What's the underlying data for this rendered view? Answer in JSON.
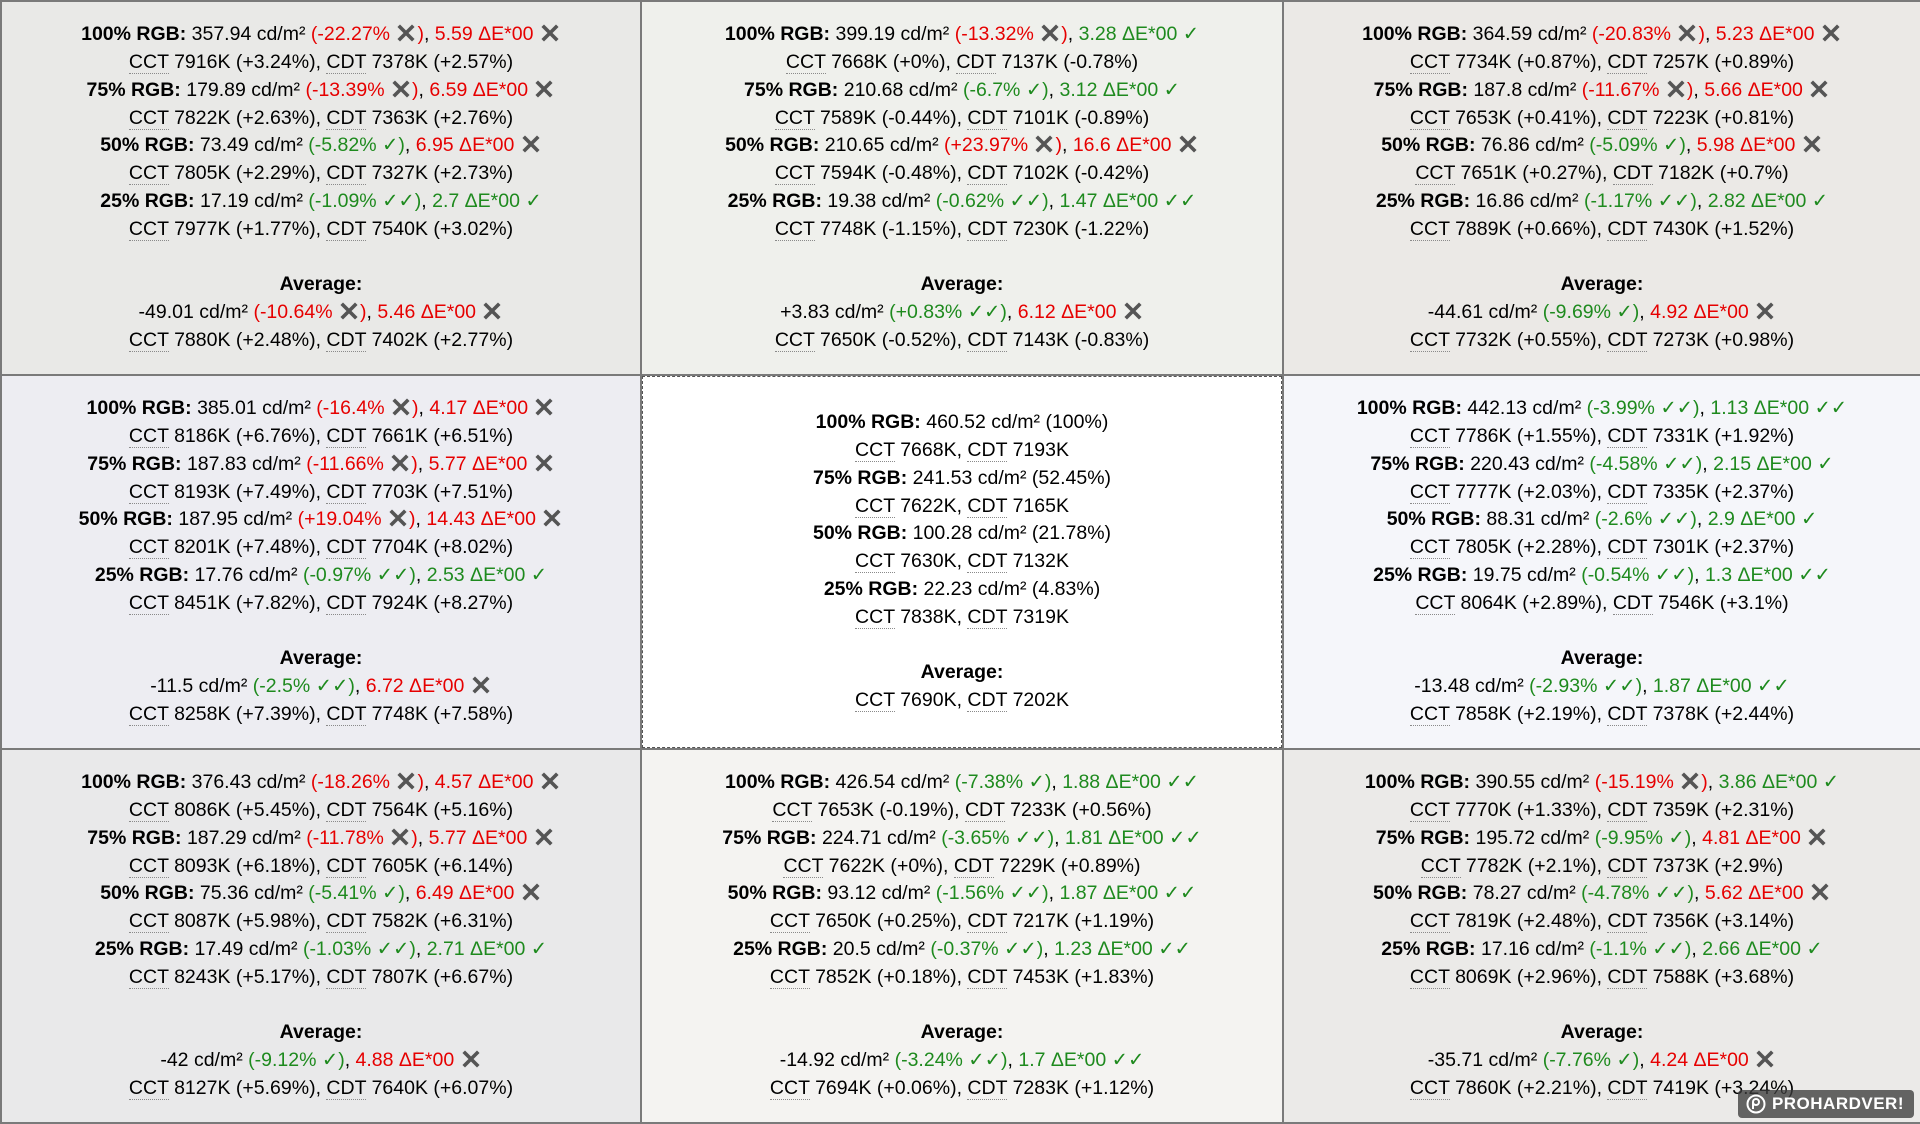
{
  "labels": {
    "average": "Average:",
    "cct": "CCT",
    "cdt": "CDT",
    "cross_glyph": "✖",
    "check_glyph": "✓"
  },
  "colors": {
    "bad": "#e60000",
    "good": "#1e8a1e",
    "text": "#000000",
    "separator": "#7a7a7a"
  },
  "watermark": {
    "text": "PROHARDVER!"
  },
  "cells": [
    {
      "id": "top-left",
      "bg": "#e9e9e7",
      "rows": [
        {
          "label": "100% RGB:",
          "lum": "357.94 cd/m²",
          "lumDev": "-22.27%",
          "lumOk": 0,
          "de": "5.59 ΔE*00",
          "deOk": 0,
          "cct": "7916K",
          "cctDev": "+3.24%",
          "cdt": "7378K",
          "cdtDev": "+2.57%"
        },
        {
          "label": "75% RGB:",
          "lum": "179.89 cd/m²",
          "lumDev": "-13.39%",
          "lumOk": 0,
          "de": "6.59 ΔE*00",
          "deOk": 0,
          "cct": "7822K",
          "cctDev": "+2.63%",
          "cdt": "7363K",
          "cdtDev": "+2.76%"
        },
        {
          "label": "50% RGB:",
          "lum": "73.49 cd/m²",
          "lumDev": "-5.82%",
          "lumOk": 1,
          "de": "6.95 ΔE*00",
          "deOk": 0,
          "cct": "7805K",
          "cctDev": "+2.29%",
          "cdt": "7327K",
          "cdtDev": "+2.73%"
        },
        {
          "label": "25% RGB:",
          "lum": "17.19 cd/m²",
          "lumDev": "-1.09%",
          "lumOk": 2,
          "de": "2.7 ΔE*00",
          "deOk": 1,
          "cct": "7977K",
          "cctDev": "+1.77%",
          "cdt": "7540K",
          "cdtDev": "+3.02%"
        }
      ],
      "avg": {
        "lum": "-49.01 cd/m²",
        "lumDev": "-10.64%",
        "lumOk": 0,
        "de": "5.46 ΔE*00",
        "deOk": 0,
        "cct": "7880K",
        "cctDev": "+2.48%",
        "cdt": "7402K",
        "cdtDev": "+2.77%"
      }
    },
    {
      "id": "top-center",
      "bg": "#eff0ec",
      "rows": [
        {
          "label": "100% RGB:",
          "lum": "399.19 cd/m²",
          "lumDev": "-13.32%",
          "lumOk": 0,
          "de": "3.28 ΔE*00",
          "deOk": 1,
          "cct": "7668K",
          "cctDev": "+0%",
          "cdt": "7137K",
          "cdtDev": "-0.78%"
        },
        {
          "label": "75% RGB:",
          "lum": "210.68 cd/m²",
          "lumDev": "-6.7%",
          "lumOk": 1,
          "de": "3.12 ΔE*00",
          "deOk": 1,
          "cct": "7589K",
          "cctDev": "-0.44%",
          "cdt": "7101K",
          "cdtDev": "-0.89%"
        },
        {
          "label": "50% RGB:",
          "lum": "210.65 cd/m²",
          "lumDev": "+23.97%",
          "lumOk": 0,
          "de": "16.6 ΔE*00",
          "deOk": 0,
          "cct": "7594K",
          "cctDev": "-0.48%",
          "cdt": "7102K",
          "cdtDev": "-0.42%"
        },
        {
          "label": "25% RGB:",
          "lum": "19.38 cd/m²",
          "lumDev": "-0.62%",
          "lumOk": 2,
          "de": "1.47 ΔE*00",
          "deOk": 2,
          "cct": "7748K",
          "cctDev": "-1.15%",
          "cdt": "7230K",
          "cdtDev": "-1.22%"
        }
      ],
      "avg": {
        "lum": "+3.83 cd/m²",
        "lumDev": "+0.83%",
        "lumOk": 2,
        "de": "6.12 ΔE*00",
        "deOk": 0,
        "cct": "7650K",
        "cctDev": "-0.52%",
        "cdt": "7143K",
        "cdtDev": "-0.83%"
      }
    },
    {
      "id": "top-right",
      "bg": "#ebe9e6",
      "rows": [
        {
          "label": "100% RGB:",
          "lum": "364.59 cd/m²",
          "lumDev": "-20.83%",
          "lumOk": 0,
          "de": "5.23 ΔE*00",
          "deOk": 0,
          "cct": "7734K",
          "cctDev": "+0.87%",
          "cdt": "7257K",
          "cdtDev": "+0.89%"
        },
        {
          "label": "75% RGB:",
          "lum": "187.8 cd/m²",
          "lumDev": "-11.67%",
          "lumOk": 0,
          "de": "5.66 ΔE*00",
          "deOk": 0,
          "cct": "7653K",
          "cctDev": "+0.41%",
          "cdt": "7223K",
          "cdtDev": "+0.81%"
        },
        {
          "label": "50% RGB:",
          "lum": "76.86 cd/m²",
          "lumDev": "-5.09%",
          "lumOk": 1,
          "de": "5.98 ΔE*00",
          "deOk": 0,
          "cct": "7651K",
          "cctDev": "+0.27%",
          "cdt": "7182K",
          "cdtDev": "+0.7%"
        },
        {
          "label": "25% RGB:",
          "lum": "16.86 cd/m²",
          "lumDev": "-1.17%",
          "lumOk": 2,
          "de": "2.82 ΔE*00",
          "deOk": 1,
          "cct": "7889K",
          "cctDev": "+0.66%",
          "cdt": "7430K",
          "cdtDev": "+1.52%"
        }
      ],
      "avg": {
        "lum": "-44.61 cd/m²",
        "lumDev": "-9.69%",
        "lumOk": 1,
        "de": "4.92 ΔE*00",
        "deOk": 0,
        "cct": "7732K",
        "cctDev": "+0.55%",
        "cdt": "7273K",
        "cdtDev": "+0.98%"
      }
    },
    {
      "id": "middle-left",
      "bg": "#ededf2",
      "rows": [
        {
          "label": "100% RGB:",
          "lum": "385.01 cd/m²",
          "lumDev": "-16.4%",
          "lumOk": 0,
          "de": "4.17 ΔE*00",
          "deOk": 0,
          "cct": "8186K",
          "cctDev": "+6.76%",
          "cdt": "7661K",
          "cdtDev": "+6.51%"
        },
        {
          "label": "75% RGB:",
          "lum": "187.83 cd/m²",
          "lumDev": "-11.66%",
          "lumOk": 0,
          "de": "5.77 ΔE*00",
          "deOk": 0,
          "cct": "8193K",
          "cctDev": "+7.49%",
          "cdt": "7703K",
          "cdtDev": "+7.51%"
        },
        {
          "label": "50% RGB:",
          "lum": "187.95 cd/m²",
          "lumDev": "+19.04%",
          "lumOk": 0,
          "de": "14.43 ΔE*00",
          "deOk": 0,
          "cct": "8201K",
          "cctDev": "+7.48%",
          "cdt": "7704K",
          "cdtDev": "+8.02%"
        },
        {
          "label": "25% RGB:",
          "lum": "17.76 cd/m²",
          "lumDev": "-0.97%",
          "lumOk": 2,
          "de": "2.53 ΔE*00",
          "deOk": 1,
          "cct": "8451K",
          "cctDev": "+7.82%",
          "cdt": "7924K",
          "cdtDev": "+8.27%"
        }
      ],
      "avg": {
        "lum": "-11.5 cd/m²",
        "lumDev": "-2.5%",
        "lumOk": 2,
        "de": "6.72 ΔE*00",
        "deOk": 0,
        "cct": "8258K",
        "cctDev": "+7.39%",
        "cdt": "7748K",
        "cdtDev": "+7.58%"
      }
    },
    {
      "id": "middle-right",
      "bg": "#f5f6fa",
      "rows": [
        {
          "label": "100% RGB:",
          "lum": "442.13 cd/m²",
          "lumDev": "-3.99%",
          "lumOk": 2,
          "de": "1.13 ΔE*00",
          "deOk": 2,
          "cct": "7786K",
          "cctDev": "+1.55%",
          "cdt": "7331K",
          "cdtDev": "+1.92%"
        },
        {
          "label": "75% RGB:",
          "lum": "220.43 cd/m²",
          "lumDev": "-4.58%",
          "lumOk": 2,
          "de": "2.15 ΔE*00",
          "deOk": 1,
          "cct": "7777K",
          "cctDev": "+2.03%",
          "cdt": "7335K",
          "cdtDev": "+2.37%"
        },
        {
          "label": "50% RGB:",
          "lum": "88.31 cd/m²",
          "lumDev": "-2.6%",
          "lumOk": 2,
          "de": "2.9 ΔE*00",
          "deOk": 1,
          "cct": "7805K",
          "cctDev": "+2.28%",
          "cdt": "7301K",
          "cdtDev": "+2.37%"
        },
        {
          "label": "25% RGB:",
          "lum": "19.75 cd/m²",
          "lumDev": "-0.54%",
          "lumOk": 2,
          "de": "1.3 ΔE*00",
          "deOk": 2,
          "cct": "8064K",
          "cctDev": "+2.89%",
          "cdt": "7546K",
          "cdtDev": "+3.1%"
        }
      ],
      "avg": {
        "lum": "-13.48 cd/m²",
        "lumDev": "-2.93%",
        "lumOk": 2,
        "de": "1.87 ΔE*00",
        "deOk": 2,
        "cct": "7858K",
        "cctDev": "+2.19%",
        "cdt": "7378K",
        "cdtDev": "+2.44%"
      }
    },
    {
      "id": "bottom-left",
      "bg": "#e9e9ea",
      "rows": [
        {
          "label": "100% RGB:",
          "lum": "376.43 cd/m²",
          "lumDev": "-18.26%",
          "lumOk": 0,
          "de": "4.57 ΔE*00",
          "deOk": 0,
          "cct": "8086K",
          "cctDev": "+5.45%",
          "cdt": "7564K",
          "cdtDev": "+5.16%"
        },
        {
          "label": "75% RGB:",
          "lum": "187.29 cd/m²",
          "lumDev": "-11.78%",
          "lumOk": 0,
          "de": "5.77 ΔE*00",
          "deOk": 0,
          "cct": "8093K",
          "cctDev": "+6.18%",
          "cdt": "7605K",
          "cdtDev": "+6.14%"
        },
        {
          "label": "50% RGB:",
          "lum": "75.36 cd/m²",
          "lumDev": "-5.41%",
          "lumOk": 1,
          "de": "6.49 ΔE*00",
          "deOk": 0,
          "cct": "8087K",
          "cctDev": "+5.98%",
          "cdt": "7582K",
          "cdtDev": "+6.31%"
        },
        {
          "label": "25% RGB:",
          "lum": "17.49 cd/m²",
          "lumDev": "-1.03%",
          "lumOk": 2,
          "de": "2.71 ΔE*00",
          "deOk": 1,
          "cct": "8243K",
          "cctDev": "+5.17%",
          "cdt": "7807K",
          "cdtDev": "+6.67%"
        }
      ],
      "avg": {
        "lum": "-42 cd/m²",
        "lumDev": "-9.12%",
        "lumOk": 1,
        "de": "4.88 ΔE*00",
        "deOk": 0,
        "cct": "8127K",
        "cctDev": "+5.69%",
        "cdt": "7640K",
        "cdtDev": "+6.07%"
      }
    },
    {
      "id": "bottom-center",
      "bg": "#f4f3f1",
      "rows": [
        {
          "label": "100% RGB:",
          "lum": "426.54 cd/m²",
          "lumDev": "-7.38%",
          "lumOk": 1,
          "de": "1.88 ΔE*00",
          "deOk": 2,
          "cct": "7653K",
          "cctDev": "-0.19%",
          "cdt": "7233K",
          "cdtDev": "+0.56%"
        },
        {
          "label": "75% RGB:",
          "lum": "224.71 cd/m²",
          "lumDev": "-3.65%",
          "lumOk": 2,
          "de": "1.81 ΔE*00",
          "deOk": 2,
          "cct": "7622K",
          "cctDev": "+0%",
          "cdt": "7229K",
          "cdtDev": "+0.89%"
        },
        {
          "label": "50% RGB:",
          "lum": "93.12 cd/m²",
          "lumDev": "-1.56%",
          "lumOk": 2,
          "de": "1.87 ΔE*00",
          "deOk": 2,
          "cct": "7650K",
          "cctDev": "+0.25%",
          "cdt": "7217K",
          "cdtDev": "+1.19%"
        },
        {
          "label": "25% RGB:",
          "lum": "20.5 cd/m²",
          "lumDev": "-0.37%",
          "lumOk": 2,
          "de": "1.23 ΔE*00",
          "deOk": 2,
          "cct": "7852K",
          "cctDev": "+0.18%",
          "cdt": "7453K",
          "cdtDev": "+1.83%"
        }
      ],
      "avg": {
        "lum": "-14.92 cd/m²",
        "lumDev": "-3.24%",
        "lumOk": 2,
        "de": "1.7 ΔE*00",
        "deOk": 2,
        "cct": "7694K",
        "cctDev": "+0.06%",
        "cdt": "7283K",
        "cdtDev": "+1.12%"
      }
    },
    {
      "id": "bottom-right",
      "bg": "#ebeae8",
      "rows": [
        {
          "label": "100% RGB:",
          "lum": "390.55 cd/m²",
          "lumDev": "-15.19%",
          "lumOk": 0,
          "de": "3.86 ΔE*00",
          "deOk": 1,
          "cct": "7770K",
          "cctDev": "+1.33%",
          "cdt": "7359K",
          "cdtDev": "+2.31%"
        },
        {
          "label": "75% RGB:",
          "lum": "195.72 cd/m²",
          "lumDev": "-9.95%",
          "lumOk": 1,
          "de": "4.81 ΔE*00",
          "deOk": 0,
          "cct": "7782K",
          "cctDev": "+2.1%",
          "cdt": "7373K",
          "cdtDev": "+2.9%"
        },
        {
          "label": "50% RGB:",
          "lum": "78.27 cd/m²",
          "lumDev": "-4.78%",
          "lumOk": 2,
          "de": "5.62 ΔE*00",
          "deOk": 0,
          "cct": "7819K",
          "cctDev": "+2.48%",
          "cdt": "7356K",
          "cdtDev": "+3.14%"
        },
        {
          "label": "25% RGB:",
          "lum": "17.16 cd/m²",
          "lumDev": "-1.1%",
          "lumOk": 2,
          "de": "2.66 ΔE*00",
          "deOk": 1,
          "cct": "8069K",
          "cctDev": "+2.96%",
          "cdt": "7588K",
          "cdtDev": "+3.68%"
        }
      ],
      "avg": {
        "lum": "-35.71 cd/m²",
        "lumDev": "-7.76%",
        "lumOk": 1,
        "de": "4.24 ΔE*00",
        "deOk": 0,
        "cct": "7860K",
        "cctDev": "+2.21%",
        "cdt": "7419K",
        "cdtDev": "+3.24%"
      }
    }
  ],
  "reference": {
    "id": "center",
    "bg": "#ffffff",
    "rows": [
      {
        "label": "100% RGB:",
        "lum": "460.52 cd/m²",
        "pct": "(100%)",
        "cct": "7668K",
        "cdt": "7193K"
      },
      {
        "label": "75% RGB:",
        "lum": "241.53 cd/m²",
        "pct": "(52.45%)",
        "cct": "7622K",
        "cdt": "7165K"
      },
      {
        "label": "50% RGB:",
        "lum": "100.28 cd/m²",
        "pct": "(21.78%)",
        "cct": "7630K",
        "cdt": "7132K"
      },
      {
        "label": "25% RGB:",
        "lum": "22.23 cd/m²",
        "pct": "(4.83%)",
        "cct": "7838K",
        "cdt": "7319K"
      }
    ],
    "avg": {
      "cct": "7690K",
      "cdt": "7202K"
    }
  }
}
